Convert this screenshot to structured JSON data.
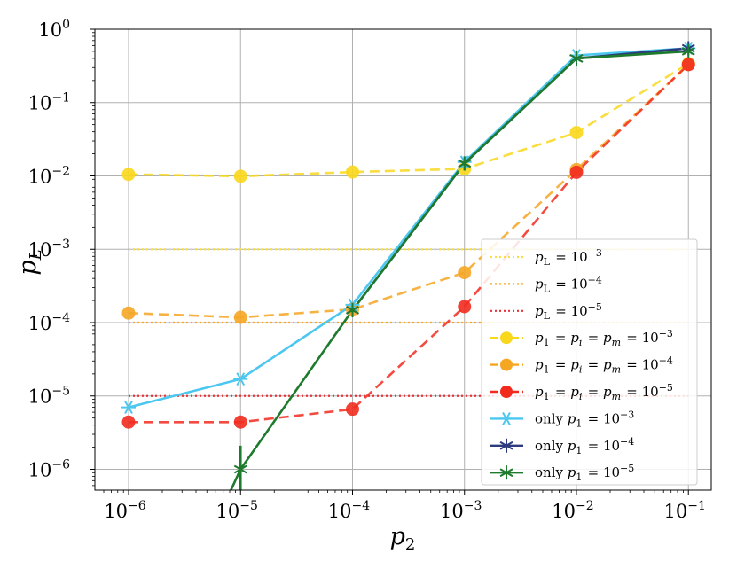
{
  "chart_data": {
    "type": "line",
    "xlabel": "p_2",
    "ylabel": "p_L",
    "xscale": "log",
    "yscale": "log",
    "xlim": [
      5e-07,
      0.16
    ],
    "ylim": [
      5.2e-07,
      1.0
    ],
    "grid": true,
    "legend_position": "lower-right",
    "x_ticks": [
      {
        "value": 1e-06,
        "label": "10",
        "exp": "−6"
      },
      {
        "value": 1e-05,
        "label": "10",
        "exp": "−5"
      },
      {
        "value": 0.0001,
        "label": "10",
        "exp": "−4"
      },
      {
        "value": 0.001,
        "label": "10",
        "exp": "−3"
      },
      {
        "value": 0.01,
        "label": "10",
        "exp": "−2"
      },
      {
        "value": 0.1,
        "label": "10",
        "exp": "−1"
      }
    ],
    "y_ticks": [
      {
        "value": 1e-06,
        "label": "10",
        "exp": "−6"
      },
      {
        "value": 1e-05,
        "label": "10",
        "exp": "−5"
      },
      {
        "value": 0.0001,
        "label": "10",
        "exp": "−4"
      },
      {
        "value": 0.001,
        "label": "10",
        "exp": "−3"
      },
      {
        "value": 0.01,
        "label": "10",
        "exp": "−2"
      },
      {
        "value": 0.1,
        "label": "10",
        "exp": "−1"
      },
      {
        "value": 1,
        "label": "10",
        "exp": "0"
      }
    ],
    "reference_lines": [
      {
        "name": "p_L = 10^-3",
        "legend": [
          "p",
          "L",
          " = 10",
          "−3"
        ],
        "y": 0.001,
        "color": "#f5e04a"
      },
      {
        "name": "p_L = 10^-4",
        "legend": [
          "p",
          "L",
          " = 10",
          "−4"
        ],
        "y": 0.0001,
        "color": "#f5a623"
      },
      {
        "name": "p_L = 10^-5",
        "legend": [
          "p",
          "L",
          " = 10",
          "−5"
        ],
        "y": 1e-05,
        "color": "#e8353a"
      }
    ],
    "series": [
      {
        "name": "p_1 = p_i = p_m = 10^-3",
        "legend": [
          "p",
          "1",
          " = ",
          "p",
          "i",
          " = ",
          "p",
          "m",
          " = 10",
          "−3"
        ],
        "color": "#f9d71c",
        "style": "dashed",
        "marker": "circle",
        "x": [
          1e-06,
          1e-05,
          0.0001,
          0.001,
          0.01,
          0.1
        ],
        "y": [
          0.0105,
          0.0099,
          0.0113,
          0.0125,
          0.039,
          0.34
        ]
      },
      {
        "name": "p_1 = p_i = p_m = 10^-4",
        "legend": [
          "p",
          "1",
          " = ",
          "p",
          "i",
          " = ",
          "p",
          "m",
          " = 10",
          "−4"
        ],
        "color": "#f5a623",
        "style": "dashed",
        "marker": "circle",
        "x": [
          1e-06,
          1e-05,
          0.0001,
          0.001,
          0.01,
          0.1
        ],
        "y": [
          0.000135,
          0.000118,
          0.000152,
          0.00048,
          0.0122,
          0.33
        ]
      },
      {
        "name": "p_1 = p_i = p_m = 10^-5",
        "legend": [
          "p",
          "1",
          " = ",
          "p",
          "i",
          " = ",
          "p",
          "m",
          " = 10",
          "−5"
        ],
        "color": "#f22b1f",
        "style": "dashed",
        "marker": "circle",
        "x": [
          1e-06,
          1e-05,
          0.0001,
          0.001,
          0.01,
          0.1
        ],
        "y": [
          4.4e-06,
          4.4e-06,
          6.6e-06,
          0.000165,
          0.0112,
          0.33
        ]
      },
      {
        "name": "only p_1 = 10^-3",
        "legend": [
          "only ",
          "p",
          "1",
          " = 10",
          "−3"
        ],
        "color": "#4cc7f0",
        "style": "solid",
        "marker": "star",
        "x": [
          1e-06,
          1e-05,
          0.0001,
          0.001,
          0.01,
          0.1
        ],
        "y": [
          7e-06,
          1.7e-05,
          0.000175,
          0.0155,
          0.44,
          0.55
        ]
      },
      {
        "name": "only p_1 = 10^-4",
        "legend": [
          "only ",
          "p",
          "1",
          " = 10",
          "−4"
        ],
        "color": "#2c3a7e",
        "style": "solid",
        "marker": "star",
        "x": [
          0.0001,
          0.001,
          0.01,
          0.1
        ],
        "y": [
          0.000148,
          0.0148,
          0.4,
          0.55
        ]
      },
      {
        "name": "only p_1 = 10^-5",
        "legend": [
          "only ",
          "p",
          "1",
          " = 10",
          "−5"
        ],
        "color": "#1e7a2c",
        "style": "solid",
        "marker": "star",
        "x": [
          5e-06,
          1e-05,
          0.0001,
          0.001,
          0.01,
          0.1
        ],
        "y": [
          1e-07,
          1e-06,
          0.000148,
          0.0148,
          0.4,
          0.5
        ]
      }
    ],
    "error_bars": [
      {
        "series": "only p_1 = 10^-5",
        "x": 1e-05,
        "y_low": 3e-07,
        "y_high": 2.1e-06,
        "color": "#1e7a2c"
      }
    ]
  }
}
